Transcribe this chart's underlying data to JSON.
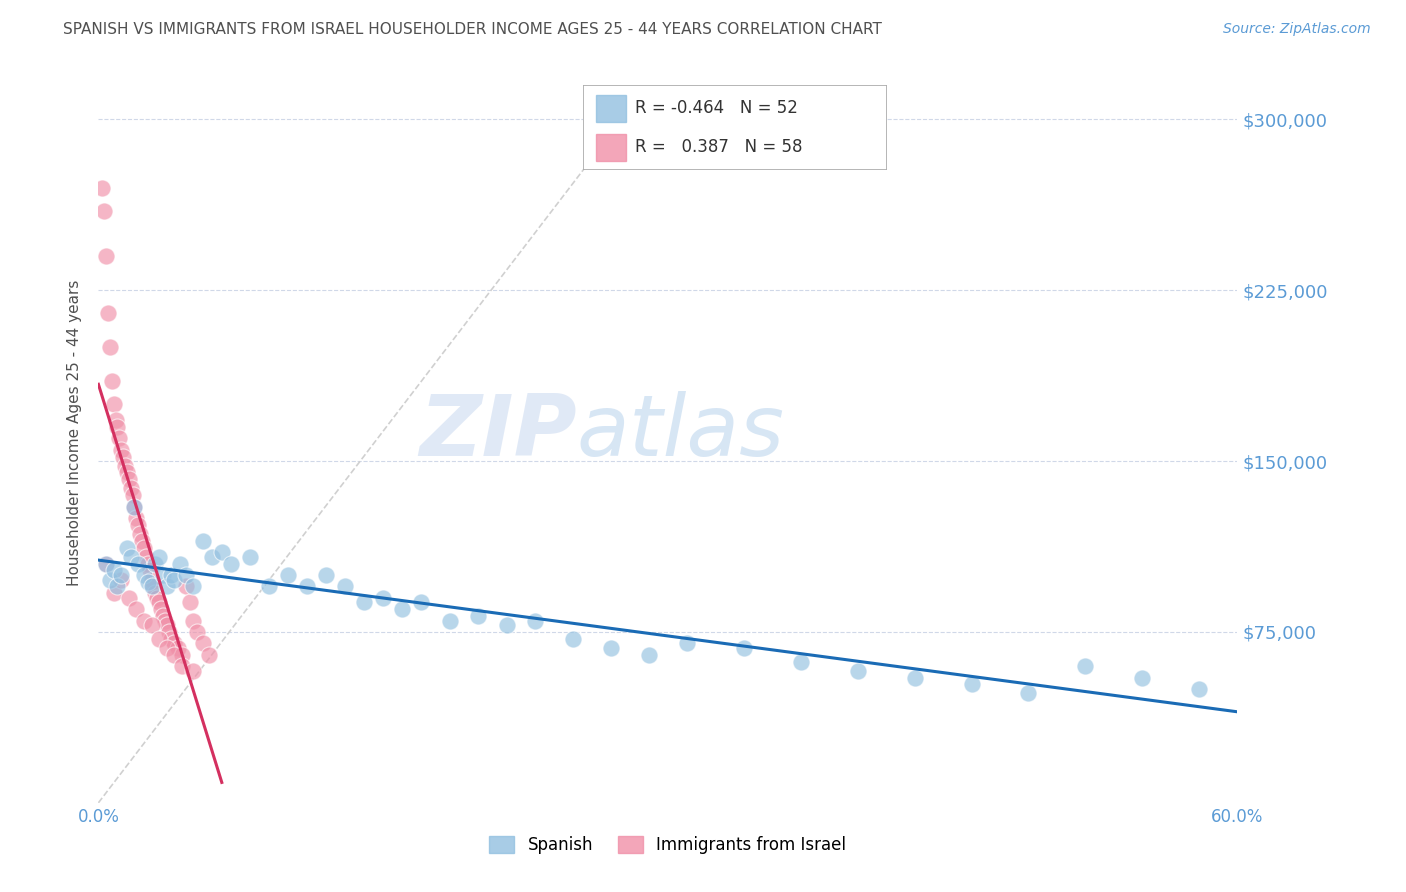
{
  "title": "SPANISH VS IMMIGRANTS FROM ISRAEL HOUSEHOLDER INCOME AGES 25 - 44 YEARS CORRELATION CHART",
  "source": "Source: ZipAtlas.com",
  "ylabel": "Householder Income Ages 25 - 44 years",
  "ytick_labels": [
    "$75,000",
    "$150,000",
    "$225,000",
    "$300,000"
  ],
  "ytick_values": [
    75000,
    150000,
    225000,
    300000
  ],
  "ymin": 0,
  "ymax": 325000,
  "xmin": 0.0,
  "xmax": 0.6,
  "watermark_zip": "ZIP",
  "watermark_atlas": "atlas",
  "legend_entry1_label": "Spanish",
  "legend_entry2_label": "Immigrants from Israel",
  "R1": -0.464,
  "N1": 52,
  "R2": 0.387,
  "N2": 58,
  "blue_dot_color": "#92c0e0",
  "pink_dot_color": "#f090a8",
  "trendline_blue": "#1a6bb5",
  "trendline_pink": "#d43060",
  "ref_line_color": "#d0d0d0",
  "title_color": "#505050",
  "ylabel_color": "#505050",
  "ytick_color": "#5b9bd5",
  "xtick_color": "#5b9bd5",
  "grid_color": "#d0d8e8",
  "legend_box_color": "#aaaaaa",
  "source_color": "#5b9bd5",
  "spanish_x": [
    0.004,
    0.006,
    0.008,
    0.01,
    0.012,
    0.015,
    0.017,
    0.019,
    0.021,
    0.024,
    0.026,
    0.028,
    0.03,
    0.032,
    0.034,
    0.036,
    0.038,
    0.04,
    0.043,
    0.046,
    0.05,
    0.055,
    0.06,
    0.065,
    0.07,
    0.08,
    0.09,
    0.1,
    0.11,
    0.12,
    0.13,
    0.14,
    0.15,
    0.16,
    0.17,
    0.185,
    0.2,
    0.215,
    0.23,
    0.25,
    0.27,
    0.29,
    0.31,
    0.34,
    0.37,
    0.4,
    0.43,
    0.46,
    0.49,
    0.52,
    0.55,
    0.58
  ],
  "spanish_y": [
    105000,
    98000,
    102000,
    95000,
    100000,
    112000,
    108000,
    130000,
    105000,
    100000,
    97000,
    95000,
    105000,
    108000,
    100000,
    95000,
    100000,
    98000,
    105000,
    100000,
    95000,
    115000,
    108000,
    110000,
    105000,
    108000,
    95000,
    100000,
    95000,
    100000,
    95000,
    88000,
    90000,
    85000,
    88000,
    80000,
    82000,
    78000,
    80000,
    72000,
    68000,
    65000,
    70000,
    68000,
    62000,
    58000,
    55000,
    52000,
    48000,
    60000,
    55000,
    50000
  ],
  "israel_x": [
    0.002,
    0.003,
    0.004,
    0.005,
    0.006,
    0.007,
    0.008,
    0.009,
    0.01,
    0.011,
    0.012,
    0.013,
    0.014,
    0.015,
    0.016,
    0.017,
    0.018,
    0.019,
    0.02,
    0.021,
    0.022,
    0.023,
    0.024,
    0.025,
    0.026,
    0.027,
    0.028,
    0.029,
    0.03,
    0.031,
    0.032,
    0.033,
    0.034,
    0.035,
    0.036,
    0.037,
    0.038,
    0.04,
    0.042,
    0.044,
    0.046,
    0.048,
    0.05,
    0.052,
    0.055,
    0.058,
    0.004,
    0.008,
    0.012,
    0.016,
    0.02,
    0.024,
    0.028,
    0.032,
    0.036,
    0.04,
    0.044,
    0.05
  ],
  "israel_y": [
    270000,
    260000,
    240000,
    215000,
    200000,
    185000,
    175000,
    168000,
    165000,
    160000,
    155000,
    152000,
    148000,
    145000,
    142000,
    138000,
    135000,
    130000,
    125000,
    122000,
    118000,
    115000,
    112000,
    108000,
    105000,
    102000,
    98000,
    95000,
    92000,
    90000,
    88000,
    85000,
    82000,
    80000,
    78000,
    75000,
    72000,
    70000,
    68000,
    65000,
    95000,
    88000,
    80000,
    75000,
    70000,
    65000,
    105000,
    92000,
    98000,
    90000,
    85000,
    80000,
    78000,
    72000,
    68000,
    65000,
    60000,
    58000
  ]
}
